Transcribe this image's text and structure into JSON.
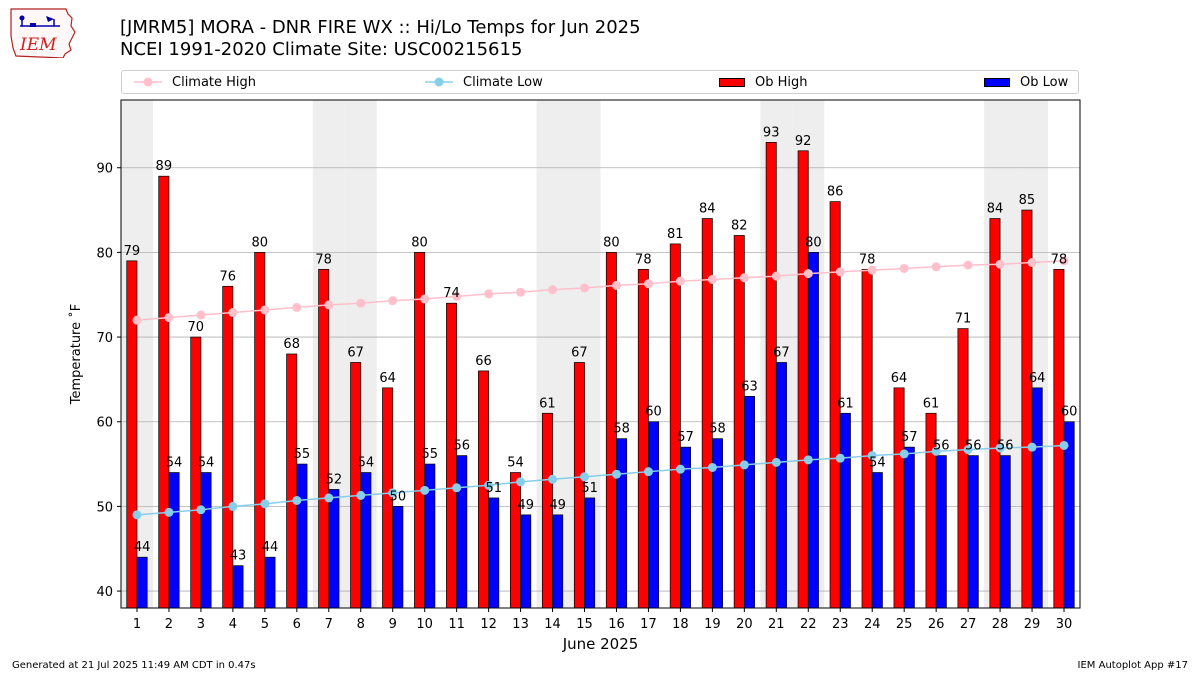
{
  "title_line1": "[JMRM5] MORA - DNR FIRE WX :: Hi/Lo Temps for Jun 2025",
  "title_line2": "NCEI 1991-2020 Climate Site: USC00215615",
  "logo_text": "IEM",
  "legend": {
    "climate_high": "Climate High",
    "climate_low": "Climate Low",
    "ob_high": "Ob High",
    "ob_low": "Ob Low"
  },
  "footer_left": "Generated at 21 Jul 2025 11:49 AM CDT in 0.47s",
  "footer_right": "IEM Autoplot App #17",
  "colors": {
    "ob_high": "#ff0000",
    "ob_low": "#0000ff",
    "climate_high": "#ffc0cb",
    "climate_low": "#87ceeb",
    "weekend_shade": "#eeeeee"
  },
  "chart_data": {
    "type": "bar",
    "xlabel": "June 2025",
    "ylabel": "Temperature ˚F",
    "ylim": [
      38,
      98
    ],
    "yticks": [
      40,
      50,
      60,
      70,
      80,
      90
    ],
    "grid": "horizontal",
    "legend_placement": "top",
    "x": [
      1,
      2,
      3,
      4,
      5,
      6,
      7,
      8,
      9,
      10,
      11,
      12,
      13,
      14,
      15,
      16,
      17,
      18,
      19,
      20,
      21,
      22,
      23,
      24,
      25,
      26,
      27,
      28,
      29,
      30
    ],
    "shaded_days": [
      1,
      7,
      8,
      14,
      15,
      21,
      22,
      28,
      29
    ],
    "series": [
      {
        "name": "Ob High",
        "kind": "bar",
        "labeled": true,
        "values": [
          79,
          89,
          70,
          76,
          80,
          68,
          78,
          67,
          64,
          80,
          74,
          66,
          54,
          61,
          67,
          80,
          78,
          81,
          84,
          82,
          93,
          92,
          86,
          78,
          64,
          61,
          71,
          84,
          85,
          78
        ]
      },
      {
        "name": "Ob Low",
        "kind": "bar",
        "labeled": true,
        "values": [
          44,
          54,
          54,
          43,
          44,
          55,
          52,
          54,
          50,
          55,
          56,
          51,
          49,
          49,
          51,
          58,
          60,
          57,
          58,
          63,
          67,
          80,
          61,
          54,
          57,
          56,
          56,
          56,
          64,
          60
        ]
      },
      {
        "name": "Climate High",
        "kind": "line",
        "values": [
          72.0,
          72.3,
          72.6,
          72.9,
          73.2,
          73.5,
          73.8,
          74.0,
          74.3,
          74.5,
          74.8,
          75.1,
          75.3,
          75.6,
          75.8,
          76.1,
          76.3,
          76.6,
          76.8,
          77.0,
          77.2,
          77.5,
          77.7,
          77.9,
          78.1,
          78.3,
          78.5,
          78.6,
          78.8,
          79.0
        ]
      },
      {
        "name": "Climate Low",
        "kind": "line",
        "values": [
          49.0,
          49.3,
          49.6,
          50.0,
          50.3,
          50.7,
          51.0,
          51.3,
          51.6,
          51.9,
          52.2,
          52.5,
          52.9,
          53.2,
          53.5,
          53.8,
          54.1,
          54.4,
          54.6,
          54.9,
          55.2,
          55.5,
          55.7,
          56.0,
          56.2,
          56.5,
          56.7,
          56.9,
          57.0,
          57.2
        ]
      }
    ]
  }
}
